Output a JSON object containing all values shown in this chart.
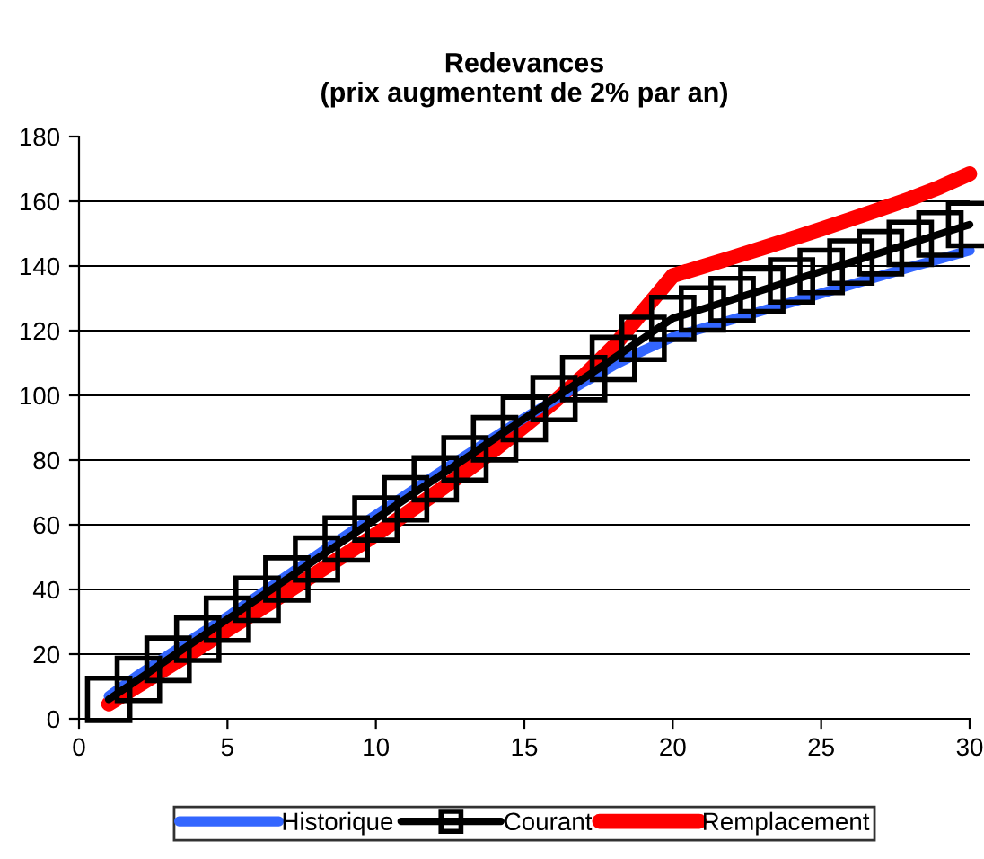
{
  "chart_data": {
    "type": "line",
    "title": "Redevances\n(prix augmentent de 2% par an)",
    "x": [
      1,
      2,
      3,
      4,
      5,
      6,
      7,
      8,
      9,
      10,
      11,
      12,
      13,
      14,
      15,
      16,
      17,
      18,
      19,
      20,
      21,
      22,
      23,
      24,
      25,
      26,
      27,
      28,
      29,
      30
    ],
    "series": [
      {
        "name": "Historique",
        "color": "#3366ff",
        "marker": "none",
        "values": [
          7,
          13.6,
          19.7,
          25.8,
          31.6,
          37.9,
          44.2,
          50.5,
          56.8,
          63,
          69.2,
          75.3,
          81.3,
          87.2,
          93,
          98.5,
          104,
          109.2,
          113.8,
          118,
          120.7,
          123.4,
          126.1,
          128.8,
          131.5,
          134.2,
          136.9,
          139.6,
          142.2,
          144.8
        ]
      },
      {
        "name": "Courant",
        "color": "#000000",
        "marker": "square",
        "values": [
          6,
          12.2,
          18.4,
          24.6,
          30.8,
          37,
          43.2,
          49.4,
          55.6,
          61.8,
          68,
          74.2,
          80.4,
          86.6,
          92.8,
          99,
          105.2,
          111.4,
          117.6,
          123.8,
          126.7,
          129.6,
          132.5,
          135.4,
          138.3,
          141.2,
          144.1,
          147,
          149.9,
          152.8
        ]
      },
      {
        "name": "Remplacement",
        "color": "#ff0000",
        "marker": "none",
        "values": [
          4.6,
          10.3,
          16,
          21.7,
          27.5,
          33.3,
          39.2,
          45.1,
          51,
          57,
          63.3,
          69.7,
          76.3,
          83.2,
          90.5,
          98,
          106,
          115,
          126,
          137,
          139.8,
          142.6,
          145.5,
          148.4,
          151.4,
          154.5,
          157.6,
          160.8,
          164.4,
          168.5
        ]
      }
    ],
    "xlim": [
      0,
      30
    ],
    "xticks": [
      0,
      5,
      10,
      15,
      20,
      25,
      30
    ],
    "ylim": [
      0,
      180
    ],
    "yticks": [
      0,
      20,
      40,
      60,
      80,
      100,
      120,
      140,
      160,
      180
    ],
    "grid": "y",
    "legend": "bottom",
    "line_style": "solid"
  }
}
